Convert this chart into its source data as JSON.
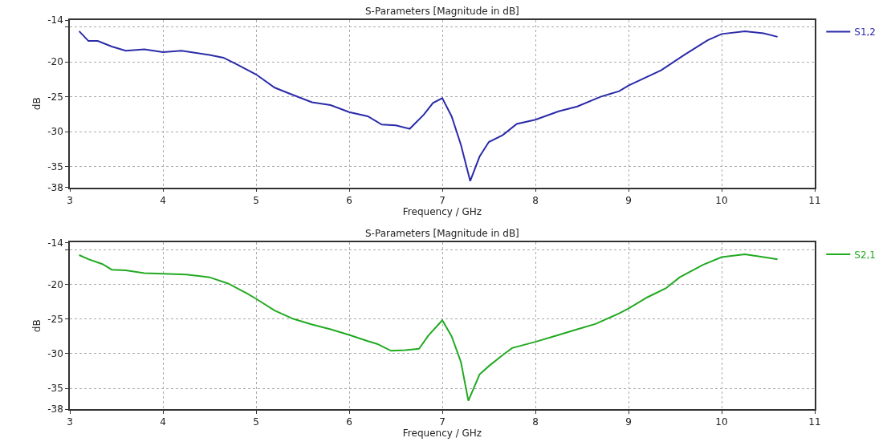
{
  "chart_data": [
    {
      "type": "line",
      "title": "S-Parameters [Magnitude in dB]",
      "xlabel": "Frequency / GHz",
      "ylabel": "dB",
      "x": [
        3.1,
        3.2,
        3.3,
        3.45,
        3.6,
        3.8,
        4.0,
        4.2,
        4.5,
        4.65,
        4.8,
        5.0,
        5.2,
        5.35,
        5.6,
        5.8,
        6.0,
        6.2,
        6.35,
        6.5,
        6.65,
        6.8,
        6.9,
        7.0,
        7.1,
        7.2,
        7.3,
        7.4,
        7.5,
        7.65,
        7.8,
        8.0,
        8.25,
        8.45,
        8.7,
        8.9,
        9.0,
        9.35,
        9.6,
        9.85,
        10.0,
        10.25,
        10.45,
        10.6
      ],
      "series": [
        {
          "name": "S1,2",
          "color": "#2b2baa",
          "values": [
            -15.6,
            -17.0,
            -17.0,
            -17.8,
            -18.4,
            -18.2,
            -18.6,
            -18.4,
            -19.0,
            -19.4,
            -20.4,
            -21.8,
            -23.7,
            -24.5,
            -25.8,
            -26.2,
            -27.2,
            -27.8,
            -29.0,
            -29.1,
            -29.6,
            -27.6,
            -25.9,
            -25.2,
            -27.8,
            -31.9,
            -37.1,
            -33.6,
            -31.5,
            -30.5,
            -28.9,
            -28.3,
            -27.1,
            -26.4,
            -25.0,
            -24.2,
            -23.4,
            -21.2,
            -19.0,
            -16.9,
            -16.0,
            -15.6,
            -15.9,
            -16.4
          ]
        }
      ],
      "xlim": [
        3,
        11
      ],
      "xticks": [
        3,
        4,
        5,
        6,
        7,
        8,
        9,
        10,
        11
      ],
      "ylim": [
        -38,
        -14
      ],
      "yticks": [
        -14,
        {
          "value": -15,
          "label": null
        },
        -20,
        -25,
        -30,
        -35,
        -38
      ],
      "grid": true,
      "legend": "top right",
      "marker": "none",
      "line_style": "solid"
    },
    {
      "type": "line",
      "title": "S-Parameters [Magnitude in dB]",
      "xlabel": "Frequency / GHz",
      "ylabel": "dB",
      "x": [
        3.1,
        3.2,
        3.35,
        3.45,
        3.6,
        3.8,
        4.0,
        4.25,
        4.5,
        4.7,
        4.9,
        5.0,
        5.2,
        5.4,
        5.6,
        5.8,
        6.0,
        6.2,
        6.3,
        6.45,
        6.6,
        6.75,
        6.85,
        7.0,
        7.1,
        7.2,
        7.28,
        7.4,
        7.5,
        7.65,
        7.75,
        8.0,
        8.2,
        8.45,
        8.65,
        8.9,
        9.0,
        9.2,
        9.4,
        9.55,
        9.8,
        10.0,
        10.25,
        10.45,
        10.6
      ],
      "series": [
        {
          "name": "S2,1",
          "color": "#22aa22",
          "values": [
            -15.8,
            -16.4,
            -17.1,
            -17.9,
            -18.0,
            -18.4,
            -18.5,
            -18.6,
            -19.0,
            -19.9,
            -21.3,
            -22.1,
            -23.8,
            -25.0,
            -25.8,
            -26.5,
            -27.3,
            -28.2,
            -28.6,
            -29.6,
            -29.5,
            -29.3,
            -27.4,
            -25.2,
            -27.5,
            -31.2,
            -36.8,
            -33.0,
            -31.8,
            -30.2,
            -29.2,
            -28.3,
            -27.5,
            -26.5,
            -25.7,
            -24.2,
            -23.5,
            -21.9,
            -20.6,
            -19.0,
            -17.2,
            -16.1,
            -15.7,
            -16.1,
            -16.4
          ]
        }
      ],
      "xlim": [
        3,
        11
      ],
      "xticks": [
        3,
        4,
        5,
        6,
        7,
        8,
        9,
        10,
        11
      ],
      "ylim": [
        -38,
        -14
      ],
      "yticks": [
        -14,
        {
          "value": -15,
          "label": null
        },
        -20,
        -25,
        -30,
        -35,
        -38
      ],
      "grid": true,
      "legend": "top right",
      "marker": "none",
      "line_style": "solid"
    }
  ]
}
